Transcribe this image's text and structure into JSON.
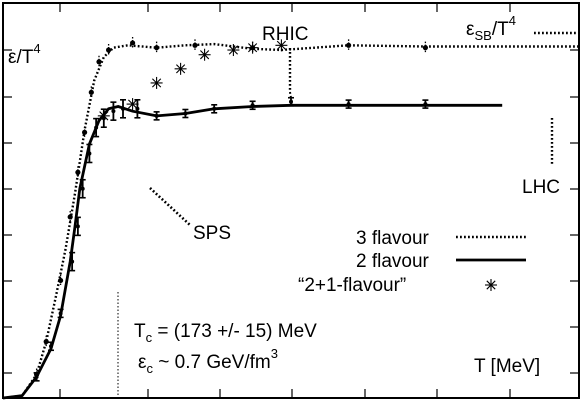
{
  "chart_data": {
    "type": "line",
    "xlabel_unit": "T [MeV]",
    "ylabel": {
      "main": "ε/T",
      "sup": "4"
    },
    "xlim": [
      40,
      640
    ],
    "ylim": [
      0,
      16.8
    ],
    "x_ticks": [],
    "y_ticks": [],
    "tc": 173,
    "series": [
      {
        "name": "3 flavour",
        "style": "dotted",
        "points": [
          [
            40,
            0.0
          ],
          [
            60,
            0.1
          ],
          [
            75,
            1.0
          ],
          [
            85,
            2.4
          ],
          [
            95,
            4.3
          ],
          [
            105,
            6.3
          ],
          [
            115,
            8.7
          ],
          [
            125,
            11.4
          ],
          [
            135,
            13.5
          ],
          [
            145,
            14.5
          ],
          [
            155,
            14.9
          ],
          [
            170,
            15.0
          ],
          [
            200,
            14.9
          ],
          [
            230,
            15.0
          ],
          [
            260,
            15.05
          ],
          [
            300,
            14.85
          ],
          [
            330,
            14.8
          ],
          [
            400,
            15.0
          ],
          [
            480,
            14.95
          ],
          [
            560,
            14.95
          ],
          [
            640,
            14.95
          ]
        ],
        "markers": [
          [
            75,
            1.0
          ],
          [
            85,
            2.4
          ],
          [
            100,
            5.0
          ],
          [
            110,
            7.7
          ],
          [
            118,
            9.6
          ],
          [
            125,
            11.3
          ],
          [
            132,
            13.0
          ],
          [
            140,
            14.3
          ],
          [
            150,
            14.8
          ],
          [
            175,
            15.1
          ],
          [
            200,
            14.9
          ],
          [
            240,
            15.0
          ],
          [
            300,
            14.9
          ],
          [
            400,
            15.0
          ],
          [
            480,
            14.9
          ]
        ]
      },
      {
        "name": "2 flavour",
        "style": "solid",
        "points": [
          [
            40,
            0.0
          ],
          [
            60,
            0.1
          ],
          [
            75,
            0.9
          ],
          [
            90,
            2.1
          ],
          [
            100,
            3.5
          ],
          [
            110,
            5.8
          ],
          [
            115,
            7.3
          ],
          [
            120,
            8.9
          ],
          [
            130,
            10.8
          ],
          [
            140,
            11.8
          ],
          [
            150,
            12.3
          ],
          [
            160,
            12.4
          ],
          [
            175,
            12.2
          ],
          [
            200,
            12.0
          ],
          [
            230,
            12.1
          ],
          [
            260,
            12.3
          ],
          [
            300,
            12.4
          ],
          [
            340,
            12.45
          ],
          [
            400,
            12.45
          ],
          [
            480,
            12.45
          ],
          [
            560,
            12.45
          ]
        ],
        "markers": [
          [
            75,
            0.9
          ],
          [
            90,
            2.2
          ],
          [
            100,
            3.6
          ],
          [
            112,
            5.8
          ],
          [
            118,
            7.3
          ],
          [
            123,
            8.9
          ],
          [
            130,
            10.4
          ],
          [
            137,
            11.5
          ],
          [
            145,
            11.9
          ],
          [
            155,
            12.2
          ],
          [
            165,
            12.3
          ],
          [
            180,
            12.3
          ],
          [
            200,
            12.0
          ],
          [
            230,
            12.1
          ],
          [
            260,
            12.3
          ],
          [
            300,
            12.45
          ],
          [
            340,
            12.6
          ],
          [
            400,
            12.5
          ],
          [
            480,
            12.5
          ]
        ]
      },
      {
        "name": "“2+1-flavour”",
        "style": "star",
        "points": [
          [
            145,
            12.0
          ],
          [
            175,
            12.5
          ],
          [
            200,
            13.4
          ],
          [
            225,
            14.0
          ],
          [
            250,
            14.6
          ],
          [
            280,
            14.8
          ],
          [
            300,
            14.9
          ],
          [
            330,
            15.0
          ]
        ]
      }
    ],
    "annotations": {
      "rhic": "RHIC",
      "lhc": "LHC",
      "sps": "SPS",
      "eps_sb_main": "ε",
      "eps_sb_sub": "SB",
      "eps_sb_rest": "/T",
      "eps_sb_sup": "4",
      "tc_text_main": "T",
      "tc_text_sub": "c",
      "tc_text_rest": " = (173 +/- 15) MeV",
      "ec_text_main": "ε",
      "ec_text_sub": "c",
      "ec_text_rest": " ~ 0.7 GeV/fm",
      "ec_text_sup": "3"
    }
  }
}
